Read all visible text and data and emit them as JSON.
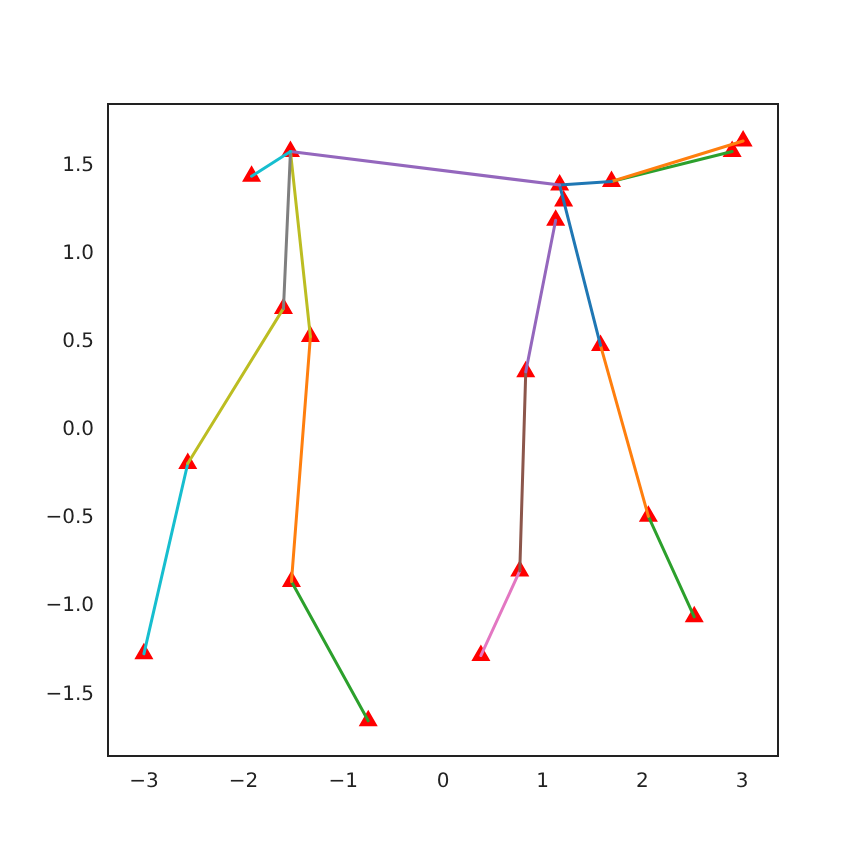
{
  "chart_data": {
    "type": "line",
    "marker": "none",
    "legend": false,
    "grid": false,
    "xlim": [
      -3.36,
      3.36
    ],
    "ylim": [
      -1.85,
      1.85
    ],
    "xticks": [
      {
        "value": -3,
        "label": "−3"
      },
      {
        "value": -2,
        "label": "−2"
      },
      {
        "value": -1,
        "label": "−1"
      },
      0,
      1,
      2,
      3
    ],
    "yticks": [
      {
        "value": -1.5,
        "label": "−1.5"
      },
      {
        "value": -1,
        "label": "−1.0"
      },
      {
        "value": -0.5,
        "label": "−0.5"
      },
      {
        "value": 0,
        "label": "0.0"
      },
      0.5,
      {
        "value": 1,
        "label": "1.0"
      },
      1.5
    ],
    "series": [
      {
        "color": "#17becf",
        "x": [
          -1.92,
          -1.53
        ],
        "values": [
          1.44,
          1.58
        ]
      },
      {
        "color": "#7f7f7f",
        "x": [
          -1.53,
          -1.6
        ],
        "values": [
          1.58,
          0.69
        ]
      },
      {
        "color": "#bcbd22",
        "x": [
          -1.53,
          -1.33
        ],
        "values": [
          1.58,
          0.53
        ]
      },
      {
        "color": "#bcbd22",
        "x": [
          -1.6,
          -2.56
        ],
        "values": [
          0.69,
          -0.19
        ]
      },
      {
        "color": "#17becf",
        "x": [
          -2.56,
          -3.0
        ],
        "values": [
          -0.19,
          -1.27
        ]
      },
      {
        "color": "#ff7f0e",
        "x": [
          -1.33,
          -1.52
        ],
        "values": [
          0.53,
          -0.86
        ]
      },
      {
        "color": "#2ca02c",
        "x": [
          -1.52,
          -0.75
        ],
        "values": [
          -0.86,
          -1.65
        ]
      },
      {
        "color": "#9467bd",
        "x": [
          -1.53,
          1.17
        ],
        "values": [
          1.58,
          1.39
        ]
      },
      {
        "color": "#1f77b4",
        "x": [
          1.17,
          1.69
        ],
        "values": [
          1.39,
          1.41
        ]
      },
      {
        "color": "#ff7f0e",
        "x": [
          1.69,
          3.01
        ],
        "values": [
          1.41,
          1.64
        ]
      },
      {
        "color": "#2ca02c",
        "x": [
          1.69,
          2.9
        ],
        "values": [
          1.41,
          1.58
        ]
      },
      {
        "color": "#1f77b4",
        "x": [
          1.17,
          1.58
        ],
        "values": [
          1.39,
          0.48
        ]
      },
      {
        "color": "#ff7f0e",
        "x": [
          1.58,
          2.06
        ],
        "values": [
          0.48,
          -0.49
        ]
      },
      {
        "color": "#2ca02c",
        "x": [
          2.06,
          2.52
        ],
        "values": [
          -0.49,
          -1.06
        ]
      },
      {
        "color": "#9467bd",
        "x": [
          1.13,
          0.83
        ],
        "values": [
          1.19,
          0.33
        ]
      },
      {
        "color": "#8c564b",
        "x": [
          0.83,
          0.77
        ],
        "values": [
          0.33,
          -0.8
        ]
      },
      {
        "color": "#e377c2",
        "x": [
          0.77,
          0.38
        ],
        "values": [
          -0.8,
          -1.28
        ]
      },
      {
        "type": "scatter",
        "marker": "triangle",
        "color": "#ff0000",
        "x": [
          -1.53,
          -1.92,
          -1.6,
          -1.33,
          -2.56,
          -3.0,
          -1.52,
          -0.75,
          1.17,
          1.21,
          1.13,
          1.69,
          2.9,
          3.01,
          1.58,
          0.83,
          0.77,
          0.38,
          2.06,
          2.52
        ],
        "values": [
          1.58,
          1.44,
          0.69,
          0.53,
          -0.19,
          -1.27,
          -0.86,
          -1.65,
          1.39,
          1.3,
          1.19,
          1.41,
          1.58,
          1.64,
          0.48,
          0.33,
          -0.8,
          -1.28,
          -0.49,
          -1.06
        ]
      }
    ]
  }
}
